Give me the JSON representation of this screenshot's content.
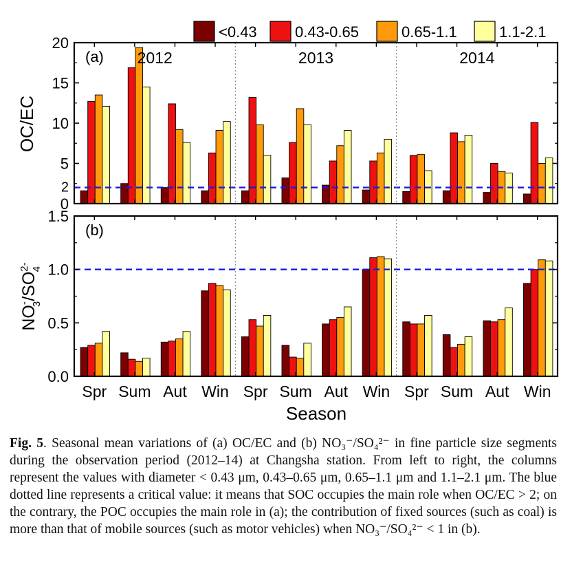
{
  "legend": [
    {
      "label": "<0.43",
      "color": "#7b0000"
    },
    {
      "label": "0.43-0.65",
      "color": "#ee1111"
    },
    {
      "label": "0.65-1.1",
      "color": "#ff9a0a"
    },
    {
      "label": "1.1-2.1",
      "color": "#ffff9e"
    }
  ],
  "threshold_color": "#1a1ae0",
  "chart_data": [
    {
      "type": "bar",
      "panel_label": "(a)",
      "ylabel": "OC/EC",
      "ylim": [
        0,
        20
      ],
      "yticks": [
        0,
        5,
        10,
        15,
        20
      ],
      "extra_tick_label": "2",
      "threshold": 2,
      "years": [
        "2012",
        "2013",
        "2014"
      ],
      "categories": [
        "Spr",
        "Sum",
        "Aut",
        "Win",
        "Spr",
        "Sum",
        "Aut",
        "Win",
        "Spr",
        "Sum",
        "Aut",
        "Win"
      ],
      "series": [
        {
          "name": "<0.43",
          "values": [
            1.6,
            2.5,
            2.0,
            1.6,
            1.6,
            3.2,
            2.3,
            1.7,
            1.5,
            1.6,
            1.4,
            1.2
          ]
        },
        {
          "name": "0.43-0.65",
          "values": [
            12.7,
            16.9,
            12.4,
            6.3,
            13.2,
            7.6,
            5.3,
            5.3,
            6.0,
            8.8,
            5.0,
            10.1
          ]
        },
        {
          "name": "0.65-1.1",
          "values": [
            13.5,
            19.4,
            9.2,
            9.1,
            9.8,
            11.8,
            7.2,
            6.3,
            6.1,
            7.7,
            4.0,
            5.0
          ]
        },
        {
          "name": "1.1-2.1",
          "values": [
            12.1,
            14.5,
            7.6,
            10.2,
            6.0,
            9.8,
            9.1,
            8.0,
            4.1,
            8.5,
            3.8,
            5.7
          ]
        }
      ]
    },
    {
      "type": "bar",
      "panel_label": "(b)",
      "ylabel_main": "NO",
      "ylabel_sub1": "3",
      "ylabel_sup1": "-",
      "ylabel_slash": "/SO",
      "ylabel_sub2": "4",
      "ylabel_sup2": "2-",
      "xlabel": "Season",
      "ylim": [
        0,
        1.5
      ],
      "yticks": [
        "0.0",
        "0.5",
        "1.0",
        "1.5"
      ],
      "threshold": 1.0,
      "categories": [
        "Spr",
        "Sum",
        "Aut",
        "Win",
        "Spr",
        "Sum",
        "Aut",
        "Win",
        "Spr",
        "Sum",
        "Aut",
        "Win"
      ],
      "series": [
        {
          "name": "<0.43",
          "values": [
            0.27,
            0.22,
            0.32,
            0.8,
            0.37,
            0.29,
            0.49,
            1.0,
            0.51,
            0.39,
            0.52,
            0.87
          ]
        },
        {
          "name": "0.43-0.65",
          "values": [
            0.29,
            0.16,
            0.33,
            0.87,
            0.53,
            0.18,
            0.53,
            1.11,
            0.49,
            0.27,
            0.51,
            1.0
          ]
        },
        {
          "name": "0.65-1.1",
          "values": [
            0.31,
            0.14,
            0.35,
            0.85,
            0.47,
            0.17,
            0.55,
            1.12,
            0.49,
            0.3,
            0.53,
            1.09
          ]
        },
        {
          "name": "1.1-2.1",
          "values": [
            0.42,
            0.17,
            0.42,
            0.81,
            0.57,
            0.31,
            0.65,
            1.1,
            0.57,
            0.37,
            0.64,
            1.08
          ]
        }
      ]
    }
  ],
  "caption": {
    "label": "Fig. 5",
    "text": ". Seasonal mean variations of (a) OC/EC and (b) NO₃⁻/SO₄²⁻ in fine particle size segments during the observation period (2012–14) at Changsha station. From left to right, the columns represent the values with diameter < 0.43 μm, 0.43–0.65 μm, 0.65–1.1 μm and 1.1–2.1 μm. The blue dotted line represents a critical value: it means that SOC occupies the main role when OC/EC > 2; on the contrary, the POC occupies the main role in (a); the contribution of fixed sources (such as coal) is more than that of mobile sources (such as motor vehicles) when NO₃⁻/SO₄²⁻ < 1 in (b)."
  }
}
